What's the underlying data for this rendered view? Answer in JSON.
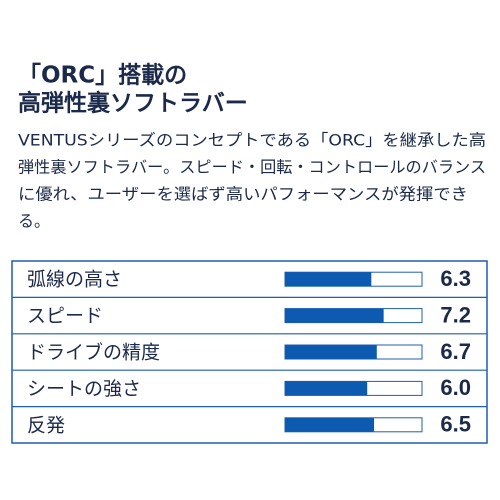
{
  "header": {
    "title_lines": [
      "「ORC」搭載の",
      "高弾性裏ソフトラバー"
    ]
  },
  "description": {
    "lines": [
      "VENTUSシリーズのコンセプトである「ORC」を継承した高",
      "弾性裏ソフトラバー。スピード・回転・コントロールのバランス",
      "に優れ、ユーザーを選ばず高いパフォーマンスが発揮でき",
      "る。"
    ]
  },
  "ratings": {
    "xlim": [
      0,
      10
    ],
    "bar_color": "#0c5bb0",
    "rows": [
      {
        "label": "弧線の高さ",
        "value": 6.3,
        "value_label": "6.3"
      },
      {
        "label": "スピード",
        "value": 7.2,
        "value_label": "7.2"
      },
      {
        "label": "ドライブの精度",
        "value": 6.7,
        "value_label": "6.7"
      },
      {
        "label": "シートの強さ",
        "value": 6.0,
        "value_label": "6.0"
      },
      {
        "label": "反発",
        "value": 6.5,
        "value_label": "6.5"
      }
    ]
  }
}
